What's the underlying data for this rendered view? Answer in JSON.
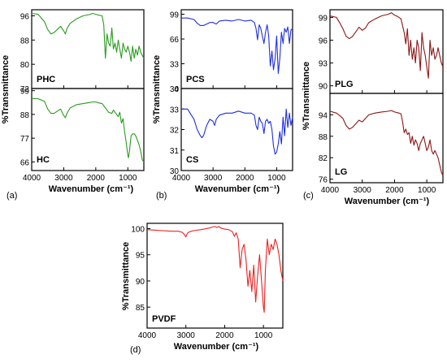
{
  "colors": {
    "a": "#2a9b1f",
    "b": "#1f2fe0",
    "c": "#8b1616",
    "d": "#ef2020"
  },
  "chart_data": [
    {
      "panel": "(a)",
      "type": "line",
      "xlabel": "Wavenumber (cm⁻¹)",
      "ylabel": "%Transmittance",
      "subplots": [
        {
          "series_name": "PHC",
          "xlim": [
            4000,
            500
          ],
          "ylim": [
            72,
            98
          ],
          "yticks": [
            72,
            80,
            88,
            96
          ],
          "x": [
            4000,
            3800,
            3600,
            3500,
            3400,
            3300,
            3200,
            3100,
            3000,
            2950,
            2900,
            2800,
            2600,
            2400,
            2200,
            2100,
            2000,
            1900,
            1800,
            1750,
            1700,
            1650,
            1600,
            1550,
            1500,
            1450,
            1400,
            1350,
            1300,
            1250,
            1200,
            1150,
            1100,
            1050,
            1000,
            950,
            900,
            850,
            800,
            750,
            700,
            650,
            600,
            550,
            500
          ],
          "y": [
            96.8,
            96.5,
            94,
            91.5,
            90,
            90.5,
            91.5,
            92.5,
            91,
            90,
            91.8,
            93.5,
            95,
            96,
            96.4,
            96.8,
            96.5,
            96.2,
            96,
            93,
            82,
            90,
            87,
            86,
            92,
            85,
            87,
            84,
            88,
            85,
            82,
            87,
            85,
            84,
            86,
            84,
            81,
            86,
            82,
            85,
            83,
            86,
            84,
            83,
            82
          ]
        },
        {
          "series_name": "HC",
          "xlim": [
            4000,
            500
          ],
          "ylim": [
            62,
            100
          ],
          "yticks": [
            66,
            77,
            88,
            99
          ],
          "x": [
            4000,
            3800,
            3600,
            3500,
            3400,
            3300,
            3200,
            3100,
            3000,
            2950,
            2900,
            2800,
            2600,
            2400,
            2200,
            2100,
            2000,
            1900,
            1800,
            1700,
            1600,
            1500,
            1450,
            1400,
            1300,
            1250,
            1200,
            1150,
            1100,
            1050,
            1000,
            980,
            950,
            900,
            850,
            800,
            750,
            700,
            650,
            600,
            550,
            500
          ],
          "y": [
            95.3,
            95.3,
            94,
            90.5,
            88.5,
            88.5,
            89.5,
            90.5,
            87.5,
            86.5,
            88.5,
            91,
            92.5,
            93,
            93.5,
            93.8,
            93.8,
            93.3,
            93,
            91,
            89,
            88.5,
            90,
            89,
            87,
            89,
            84,
            86,
            80,
            75,
            69,
            68,
            71,
            78,
            79,
            79,
            78,
            76,
            74,
            71,
            67,
            66
          ]
        }
      ]
    },
    {
      "panel": "(b)",
      "type": "line",
      "xlabel": "Wavenumber (cm⁻¹)",
      "ylabel": "%Transmittance",
      "subplots": [
        {
          "series_name": "PCS",
          "xlim": [
            4000,
            500
          ],
          "ylim": [
            0,
            105
          ],
          "yticks": [
            0,
            33,
            66,
            99
          ],
          "x": [
            4000,
            3800,
            3600,
            3500,
            3400,
            3300,
            3200,
            3100,
            3000,
            2900,
            2800,
            2600,
            2400,
            2200,
            2000,
            1800,
            1700,
            1650,
            1600,
            1550,
            1500,
            1450,
            1400,
            1350,
            1300,
            1250,
            1200,
            1150,
            1100,
            1050,
            1000,
            950,
            900,
            850,
            800,
            750,
            700,
            650,
            600,
            550,
            500
          ],
          "y": [
            94,
            94,
            92,
            87,
            84,
            84,
            86,
            88,
            88,
            86,
            90,
            91,
            90,
            92,
            90,
            91,
            88,
            80,
            65,
            85,
            80,
            70,
            60,
            75,
            85,
            70,
            30,
            50,
            25,
            40,
            70,
            20,
            40,
            75,
            60,
            80,
            75,
            82,
            60,
            78,
            80
          ]
        },
        {
          "series_name": "CS",
          "xlim": [
            4000,
            500
          ],
          "ylim": [
            30,
            34
          ],
          "yticks": [
            30,
            31,
            32,
            33,
            34
          ],
          "x": [
            4000,
            3800,
            3600,
            3500,
            3400,
            3350,
            3300,
            3200,
            3100,
            3000,
            2950,
            2900,
            2800,
            2600,
            2400,
            2200,
            2000,
            1800,
            1700,
            1650,
            1600,
            1550,
            1500,
            1450,
            1400,
            1350,
            1300,
            1250,
            1200,
            1150,
            1100,
            1050,
            1000,
            950,
            900,
            850,
            800,
            750,
            700,
            650,
            600,
            550,
            500
          ],
          "y": [
            33,
            33,
            32.5,
            32,
            31.7,
            31.6,
            31.7,
            32.2,
            32.5,
            32.4,
            32.2,
            32.5,
            32.7,
            32.8,
            32.8,
            32.9,
            32.8,
            32.8,
            32.7,
            32.2,
            32,
            32.6,
            32.4,
            32.3,
            31.8,
            32.4,
            32.5,
            32.3,
            32.4,
            32,
            31.2,
            30.8,
            30.9,
            31.3,
            31.9,
            31.3,
            32.6,
            31.7,
            33,
            32.1,
            32.8,
            32.2,
            32.6
          ]
        }
      ]
    },
    {
      "panel": "(c)",
      "type": "line",
      "xlabel": "Wavenumber (cm⁻¹)",
      "ylabel": "%Transmittance",
      "subplots": [
        {
          "series_name": "PLG",
          "xlim": [
            4000,
            500
          ],
          "ylim": [
            89,
            100
          ],
          "yticks": [
            90,
            93,
            96,
            99
          ],
          "x": [
            4000,
            3800,
            3700,
            3600,
            3500,
            3400,
            3300,
            3200,
            3100,
            3000,
            2900,
            2800,
            2600,
            2400,
            2200,
            2100,
            2000,
            1900,
            1800,
            1700,
            1650,
            1600,
            1550,
            1500,
            1450,
            1400,
            1350,
            1300,
            1250,
            1200,
            1150,
            1100,
            1050,
            1000,
            950,
            900,
            850,
            800,
            750,
            700,
            650,
            600,
            550,
            500
          ],
          "y": [
            99.2,
            99,
            98.3,
            97.5,
            96.5,
            96.2,
            96.5,
            97.1,
            97.7,
            97.3,
            97.6,
            98.3,
            98.8,
            99.2,
            99.4,
            99.6,
            99.3,
            99.1,
            98.8,
            97,
            95.5,
            97.5,
            94,
            96,
            93.5,
            95,
            93,
            96,
            95,
            92,
            97,
            95,
            94,
            92.5,
            91,
            96,
            94,
            95,
            93.5,
            94,
            95,
            94,
            93,
            92.5
          ]
        },
        {
          "series_name": "LG",
          "xlim": [
            4000,
            500
          ],
          "ylim": [
            75,
            100
          ],
          "yticks": [
            76,
            82,
            88,
            94
          ],
          "x": [
            4000,
            3800,
            3700,
            3600,
            3500,
            3400,
            3300,
            3200,
            3100,
            3000,
            2900,
            2800,
            2600,
            2400,
            2200,
            2100,
            2000,
            1900,
            1800,
            1750,
            1700,
            1650,
            1600,
            1550,
            1500,
            1450,
            1400,
            1350,
            1300,
            1250,
            1200,
            1150,
            1100,
            1050,
            1000,
            950,
            900,
            850,
            800,
            750,
            700,
            650,
            600,
            550,
            500
          ],
          "y": [
            95,
            94.5,
            93.8,
            93,
            91,
            90,
            90.5,
            91.5,
            92.5,
            92,
            93,
            94,
            94.5,
            94.8,
            95,
            95.2,
            94.8,
            94.6,
            94.3,
            92,
            89,
            90,
            88.5,
            89,
            86,
            88,
            85.5,
            87,
            86,
            84,
            86,
            87,
            88,
            86,
            84,
            85,
            87,
            84,
            83,
            84,
            83,
            82,
            80,
            78,
            77
          ]
        }
      ]
    },
    {
      "panel": "(d)",
      "type": "line",
      "xlabel": "Wavenumber (cm⁻¹)",
      "ylabel": "%Transmittance",
      "subplots": [
        {
          "series_name": "PVDF",
          "xlim": [
            4000,
            500
          ],
          "ylim": [
            81,
            101
          ],
          "yticks": [
            85,
            90,
            95,
            100
          ],
          "x": [
            4000,
            3800,
            3600,
            3400,
            3200,
            3100,
            3050,
            3000,
            2980,
            2950,
            2900,
            2800,
            2600,
            2400,
            2300,
            2250,
            2200,
            2150,
            2100,
            2000,
            1900,
            1800,
            1750,
            1700,
            1650,
            1600,
            1550,
            1500,
            1450,
            1400,
            1350,
            1300,
            1250,
            1200,
            1150,
            1100,
            1050,
            1000,
            980,
            950,
            900,
            850,
            800,
            750,
            700,
            650,
            600,
            550,
            500
          ],
          "y": [
            99.8,
            99.7,
            99.6,
            99.5,
            99.5,
            99.3,
            99,
            98.4,
            98.8,
            99.2,
            99.4,
            99.6,
            99.8,
            100.1,
            100.3,
            100.4,
            100.2,
            100.4,
            100.1,
            99.9,
            99.8,
            99.4,
            98.5,
            99.2,
            98,
            92.5,
            96,
            97,
            94,
            89,
            92,
            88,
            93,
            86,
            91,
            95,
            90,
            85,
            84,
            92,
            98,
            95,
            97,
            96,
            98,
            97,
            95,
            92,
            90
          ]
        }
      ]
    }
  ]
}
